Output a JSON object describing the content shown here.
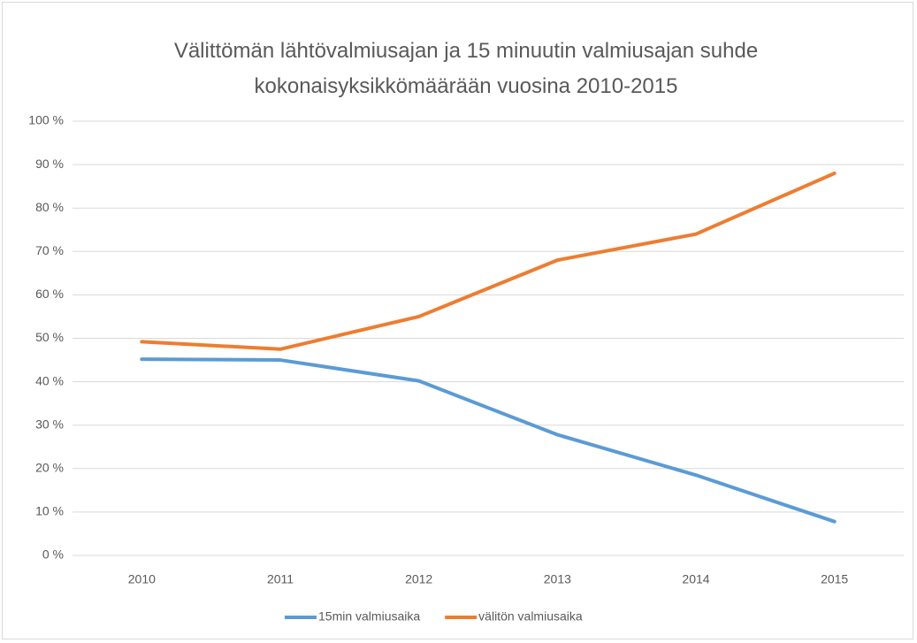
{
  "chart_data": {
    "type": "line",
    "title": "Välittömän lähtövalmiusajan ja 15 minuutin valmiusajan suhde kokonaisyksikkömäärään vuosina 2010-2015",
    "categories": [
      "2010",
      "2011",
      "2012",
      "2013",
      "2014",
      "2015"
    ],
    "series": [
      {
        "name": "15min valmiusaika",
        "color": "#5b9bd5",
        "values": [
          45.2,
          45.0,
          40.2,
          27.8,
          18.5,
          7.8
        ]
      },
      {
        "name": "välitön valmiusaika",
        "color": "#ed7d31",
        "values": [
          49.2,
          47.5,
          55.0,
          68.0,
          74.0,
          88.0
        ]
      }
    ],
    "ylim": [
      0,
      100
    ],
    "yticks": [
      {
        "value": 0,
        "label": "0 %"
      },
      {
        "value": 10,
        "label": "10 %"
      },
      {
        "value": 20,
        "label": "20 %"
      },
      {
        "value": 30,
        "label": "30 %"
      },
      {
        "value": 40,
        "label": "40 %"
      },
      {
        "value": 50,
        "label": "50 %"
      },
      {
        "value": 60,
        "label": "60 %"
      },
      {
        "value": 70,
        "label": "70 %"
      },
      {
        "value": 80,
        "label": "80 %"
      },
      {
        "value": 90,
        "label": "90 %"
      },
      {
        "value": 100,
        "label": "100 %"
      }
    ],
    "grid": true,
    "legend": "bottom"
  }
}
